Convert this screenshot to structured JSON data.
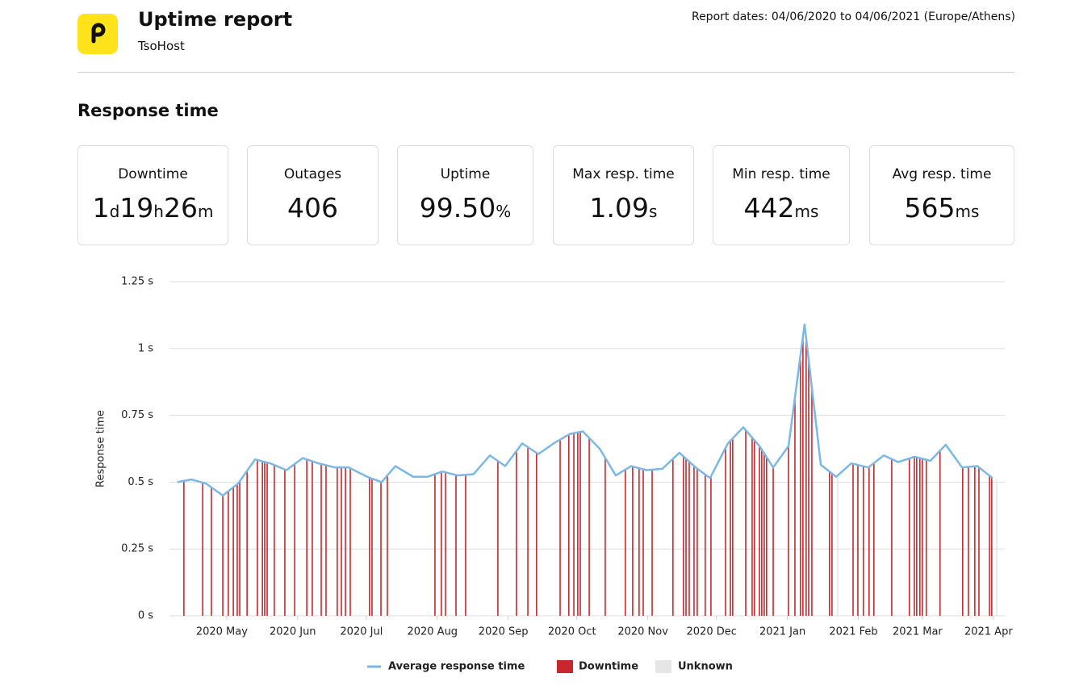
{
  "header": {
    "title": "Uptime report",
    "subtitle": "TsoHost",
    "report_dates": "Report dates: 04/06/2020 to 04/06/2021 (Europe/Athens)"
  },
  "section_title": "Response time",
  "stats": [
    {
      "label": "Downtime",
      "value_parts": [
        "1",
        "d",
        "19",
        "h",
        "26",
        "m"
      ]
    },
    {
      "label": "Outages",
      "value_parts": [
        "406"
      ]
    },
    {
      "label": "Uptime",
      "value_parts": [
        "99.50",
        "%"
      ]
    },
    {
      "label": "Max resp. time",
      "value_parts": [
        "1.09",
        "s"
      ]
    },
    {
      "label": "Min resp. time",
      "value_parts": [
        "442",
        "ms"
      ]
    },
    {
      "label": "Avg resp. time",
      "value_parts": [
        "565",
        "ms"
      ]
    }
  ],
  "chart_data": {
    "type": "line",
    "ylabel": "Response time",
    "grid": true,
    "xlim": [
      0,
      365
    ],
    "ylim": [
      0,
      1.25
    ],
    "yticks": [
      {
        "value": 0,
        "label": "0 s"
      },
      {
        "value": 0.25,
        "label": "0.25 s"
      },
      {
        "value": 0.5,
        "label": "0.5 s"
      },
      {
        "value": 0.75,
        "label": "0.75 s"
      },
      {
        "value": 1,
        "label": "1 s"
      },
      {
        "value": 1.25,
        "label": "1.25 s"
      }
    ],
    "xticks": [
      {
        "value": 25,
        "label": "2020 May"
      },
      {
        "value": 56,
        "label": "2020 Jun"
      },
      {
        "value": 86,
        "label": "2020 Jul"
      },
      {
        "value": 117,
        "label": "2020 Aug"
      },
      {
        "value": 148,
        "label": "2020 Sep"
      },
      {
        "value": 178,
        "label": "2020 Oct"
      },
      {
        "value": 209,
        "label": "2020 Nov"
      },
      {
        "value": 239,
        "label": "2020 Dec"
      },
      {
        "value": 270,
        "label": "2021 Jan"
      },
      {
        "value": 301,
        "label": "2021 Feb"
      },
      {
        "value": 329,
        "label": "2021 Mar"
      },
      {
        "value": 360,
        "label": "2021 Apr"
      }
    ],
    "series": [
      {
        "name": "Average response time",
        "color": "#7ab8e6",
        "x": [
          3.5,
          9.5,
          15.9,
          23.3,
          30,
          37.4,
          44.1,
          51.1,
          58.2,
          65.2,
          72.3,
          78.3,
          86.4,
          92.7,
          98.7,
          106.5,
          112.8,
          119.2,
          125.9,
          132.9,
          140,
          146.7,
          154.1,
          161.2,
          167.9,
          174.9,
          180.6,
          188,
          195,
          201.7,
          208.4,
          215.4,
          222.8,
          229.9,
          236.2,
          244,
          250.7,
          257.8,
          263.8,
          270.5,
          277.5,
          284.6,
          291.3,
          297.9,
          305.4,
          312.1,
          318.4,
          325.5,
          332.5,
          339.2,
          346.3,
          353,
          359.7
        ],
        "values": [
          0.5,
          0.51,
          0.495,
          0.45,
          0.495,
          0.585,
          0.57,
          0.545,
          0.59,
          0.57,
          0.555,
          0.555,
          0.52,
          0.5,
          0.56,
          0.52,
          0.52,
          0.54,
          0.525,
          0.53,
          0.6,
          0.56,
          0.645,
          0.605,
          0.645,
          0.68,
          0.69,
          0.625,
          0.525,
          0.56,
          0.545,
          0.55,
          0.61,
          0.555,
          0.515,
          0.645,
          0.705,
          0.635,
          0.555,
          0.635,
          1.09,
          0.565,
          0.52,
          0.57,
          0.555,
          0.6,
          0.575,
          0.595,
          0.58,
          0.64,
          0.555,
          0.56,
          0.515
        ]
      }
    ],
    "downtime": {
      "name": "Downtime",
      "color": "#c8282d",
      "x": [
        6.3,
        14.5,
        18.3,
        23.3,
        25.7,
        27.9,
        29.6,
        30.7,
        33.9,
        38.4,
        40.6,
        41.6,
        42.7,
        45.8,
        50.4,
        54.7,
        60,
        62.4,
        66.3,
        68.4,
        73.3,
        75.1,
        76.9,
        79,
        87.4,
        88.5,
        92.4,
        95.2,
        116,
        118.8,
        120.6,
        125.2,
        129.4,
        143.5,
        151.6,
        156.6,
        160.4,
        170.7,
        174.5,
        176.7,
        178.4,
        179.5,
        183.4,
        190.4,
        199.2,
        202.4,
        205.2,
        207,
        210.9,
        220,
        224.6,
        225.7,
        227.1,
        229.2,
        230.6,
        234.1,
        236.6,
        243,
        245.1,
        246.1,
        251.8,
        254.6,
        255.6,
        257.8,
        258.8,
        259.9,
        260.9,
        263.8,
        270.5,
        273.3,
        275.7,
        276.8,
        278.2,
        279.3,
        280.7,
        288.4,
        289.5,
        298.7,
        300.8,
        303.2,
        305.7,
        307.8,
        315.6,
        323.3,
        325.5,
        326.5,
        327.9,
        329,
        330.7,
        336.7,
        346.6,
        349.1,
        351.9,
        353.7,
        358.3,
        359.3
      ]
    },
    "unknown": {
      "name": "Unknown",
      "color": "#e6e6e6",
      "x": [
        292,
        361.5
      ]
    }
  }
}
